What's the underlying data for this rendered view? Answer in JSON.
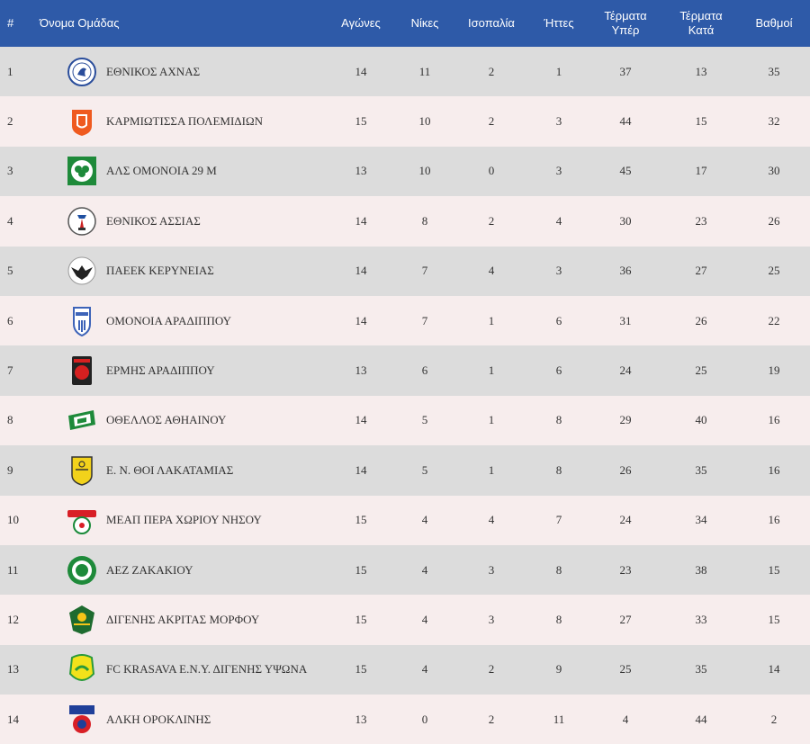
{
  "headers": {
    "rank": "#",
    "team": "Όνομα Ομάδας",
    "played": "Αγώνες",
    "wins": "Νίκες",
    "draws": "Ισοπαλία",
    "losses": "Ήττες",
    "gf": "Τέρματα Υπέρ",
    "ga": "Τέρματα Κατά",
    "points": "Βαθμοί"
  },
  "rows": [
    {
      "rank": "1",
      "team": "ΕΘΝΙΚΟΣ ΑΧΝΑΣ",
      "played": "14",
      "wins": "11",
      "draws": "2",
      "losses": "1",
      "gf": "37",
      "ga": "13",
      "points": "35",
      "logo": "ethnikos-achnas-crest-icon"
    },
    {
      "rank": "2",
      "team": "ΚΑΡΜΙΩΤΙΣΣΑ ΠΟΛΕΜΙΔΙΩΝ",
      "played": "15",
      "wins": "10",
      "draws": "2",
      "losses": "3",
      "gf": "44",
      "ga": "15",
      "points": "32",
      "logo": "karmiotissa-crest-icon"
    },
    {
      "rank": "3",
      "team": "ΑΛΣ ΟΜΟΝΟΙΑ 29 Μ",
      "played": "13",
      "wins": "10",
      "draws": "0",
      "losses": "3",
      "gf": "45",
      "ga": "17",
      "points": "30",
      "logo": "omonoia-29m-crest-icon"
    },
    {
      "rank": "4",
      "team": "ΕΘΝΙΚΟΣ ΑΣΣΙΑΣ",
      "played": "14",
      "wins": "8",
      "draws": "2",
      "losses": "4",
      "gf": "30",
      "ga": "23",
      "points": "26",
      "logo": "ethnikos-assias-crest-icon"
    },
    {
      "rank": "5",
      "team": "ΠΑΕΕΚ ΚΕΡΥΝΕΙΑΣ",
      "played": "14",
      "wins": "7",
      "draws": "4",
      "losses": "3",
      "gf": "36",
      "ga": "27",
      "points": "25",
      "logo": "paeek-eagle-crest-icon"
    },
    {
      "rank": "6",
      "team": "ΟΜΟΝΟΙΑ ΑΡΑΔΙΠΠΟΥ",
      "played": "14",
      "wins": "7",
      "draws": "1",
      "losses": "6",
      "gf": "31",
      "ga": "26",
      "points": "22",
      "logo": "omonoia-aradippou-crest-icon"
    },
    {
      "rank": "7",
      "team": "ΕΡΜΗΣ ΑΡΑΔΙΠΠΟΥ",
      "played": "13",
      "wins": "6",
      "draws": "1",
      "losses": "6",
      "gf": "24",
      "ga": "25",
      "points": "19",
      "logo": "ermis-aradippou-crest-icon"
    },
    {
      "rank": "8",
      "team": "ΟΘΕΛΛΟΣ ΑΘΗΑΙΝΟΥ",
      "played": "14",
      "wins": "5",
      "draws": "1",
      "losses": "8",
      "gf": "29",
      "ga": "40",
      "points": "16",
      "logo": "othellos-athienou-crest-icon"
    },
    {
      "rank": "9",
      "team": "Ε. Ν. ΘΟΙ ΛΑΚΑΤΑΜΙΑΣ",
      "played": "14",
      "wins": "5",
      "draws": "1",
      "losses": "8",
      "gf": "26",
      "ga": "35",
      "points": "16",
      "logo": "thoi-lakatamias-crest-icon"
    },
    {
      "rank": "10",
      "team": "ΜΕΑΠ ΠΕΡΑ ΧΩΡΙΟΥ ΝΗΣΟΥ",
      "played": "15",
      "wins": "4",
      "draws": "4",
      "losses": "7",
      "gf": "24",
      "ga": "34",
      "points": "16",
      "logo": "meap-crest-icon"
    },
    {
      "rank": "11",
      "team": "ΑΕΖ ΖΑΚΑΚΙΟΥ",
      "played": "15",
      "wins": "4",
      "draws": "3",
      "losses": "8",
      "gf": "23",
      "ga": "38",
      "points": "15",
      "logo": "aez-zakakiou-crest-icon"
    },
    {
      "rank": "12",
      "team": "ΔΙΓΕΝΗΣ ΑΚΡΙΤΑΣ ΜΟΡΦΟΥ",
      "played": "15",
      "wins": "4",
      "draws": "3",
      "losses": "8",
      "gf": "27",
      "ga": "33",
      "points": "15",
      "logo": "digenis-morfou-crest-icon"
    },
    {
      "rank": "13",
      "team": "FC KRASAVA Ε.Ν.Υ. ΔΙΓΕΝΗΣ ΥΨΩΝΑ",
      "played": "15",
      "wins": "4",
      "draws": "2",
      "losses": "9",
      "gf": "25",
      "ga": "35",
      "points": "14",
      "logo": "krasava-crest-icon"
    },
    {
      "rank": "14",
      "team": "ΑΛΚΗ ΟΡΟΚΛΙΝΗΣ",
      "played": "13",
      "wins": "0",
      "draws": "2",
      "losses": "11",
      "gf": "4",
      "ga": "44",
      "points": "2",
      "logo": "alki-oroklinis-crest-icon"
    }
  ]
}
